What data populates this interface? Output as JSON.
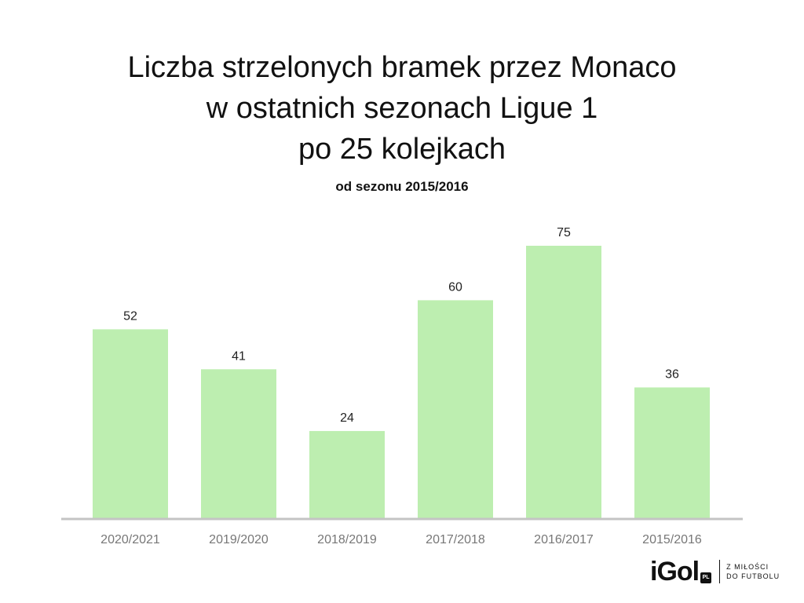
{
  "title_lines": [
    "Liczba strzelonych bramek przez Monaco",
    "w ostatnich sezonach Ligue 1",
    "po 25 kolejkach"
  ],
  "subtitle": "od sezonu 2015/2016",
  "chart_data": {
    "type": "bar",
    "title": "Liczba strzelonych bramek przez Monaco w ostatnich sezonach Ligue 1 po 25 kolejkach",
    "subtitle": "od sezonu 2015/2016",
    "categories": [
      "2020/2021",
      "2019/2020",
      "2018/2019",
      "2017/2018",
      "2016/2017",
      "2015/2016"
    ],
    "values": [
      52,
      41,
      24,
      60,
      75,
      36
    ],
    "data_labels": [
      "52",
      "41",
      "24",
      "60",
      "75",
      "36"
    ],
    "xlabel": "",
    "ylabel": "",
    "ylim": [
      0,
      75
    ],
    "grid": false,
    "legend": "none",
    "colors": {
      "bar": "#bdeeb0",
      "axis": "#c4c4c4",
      "tick_label": "#777777",
      "data_label": "#222222"
    }
  },
  "logo": {
    "word": "iGol",
    "badge": "PL",
    "tagline": [
      "Z MIŁOŚCI",
      "DO FUTBOLU"
    ]
  }
}
